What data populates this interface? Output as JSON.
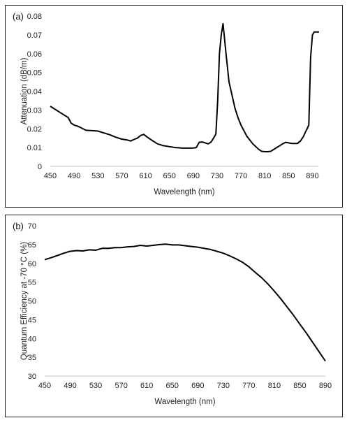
{
  "chart_data": [
    {
      "type": "line",
      "panel_label": "(a)",
      "title": "",
      "xlabel": "Wavelength (nm)",
      "ylabel": "Attenuation (dB/m)",
      "xlim": [
        450,
        900
      ],
      "ylim": [
        0,
        0.08
      ],
      "xticks": [
        450,
        490,
        530,
        570,
        610,
        650,
        690,
        730,
        770,
        810,
        850,
        890
      ],
      "yticks": [
        0,
        0.01,
        0.02,
        0.03,
        0.04,
        0.05,
        0.06,
        0.07,
        0.08
      ],
      "ytick_labels": [
        "0",
        "0.01",
        "0.02",
        "0.03",
        "0.04",
        "0.05",
        "0.06",
        "0.07",
        "0.08"
      ],
      "grid": false,
      "legend": "none",
      "series": [
        {
          "color": "#000000",
          "x": [
            450,
            470,
            480,
            485,
            490,
            495,
            500,
            510,
            520,
            530,
            540,
            550,
            560,
            570,
            580,
            585,
            588,
            592,
            596,
            602,
            607,
            613,
            620,
            630,
            640,
            650,
            660,
            670,
            675,
            680,
            683,
            686,
            690,
            695,
            700,
            705,
            710,
            715,
            720,
            724,
            728,
            731,
            734,
            737,
            740,
            745,
            750,
            755,
            760,
            765,
            770,
            775,
            780,
            790,
            800,
            805,
            810,
            815,
            820,
            830,
            840,
            845,
            850,
            855,
            860,
            865,
            870,
            875,
            878,
            881,
            884,
            887,
            890,
            893,
            896,
            899,
            901
          ],
          "y": [
            0.032,
            0.028,
            0.026,
            0.023,
            0.022,
            0.0215,
            0.0208,
            0.0192,
            0.019,
            0.0188,
            0.0178,
            0.0168,
            0.0155,
            0.0145,
            0.014,
            0.0135,
            0.014,
            0.0145,
            0.015,
            0.0165,
            0.017,
            0.0155,
            0.014,
            0.012,
            0.011,
            0.0105,
            0.01,
            0.0098,
            0.0097,
            0.0097,
            0.0097,
            0.0097,
            0.0098,
            0.01,
            0.0128,
            0.013,
            0.0125,
            0.012,
            0.013,
            0.015,
            0.0172,
            0.035,
            0.06,
            0.07,
            0.076,
            0.06,
            0.045,
            0.038,
            0.031,
            0.026,
            0.022,
            0.019,
            0.016,
            0.012,
            0.009,
            0.008,
            0.0078,
            0.0078,
            0.008,
            0.01,
            0.012,
            0.0128,
            0.0125,
            0.0122,
            0.0122,
            0.0122,
            0.0135,
            0.016,
            0.018,
            0.02,
            0.022,
            0.058,
            0.07,
            0.0715,
            0.0715,
            0.0715,
            0.0715
          ]
        }
      ]
    },
    {
      "type": "line",
      "panel_label": "(b)",
      "title": "",
      "xlabel": "Wavelength (nm)",
      "ylabel": "Quantum Efficiency at -70 °C (%)",
      "xlim": [
        450,
        890
      ],
      "ylim": [
        30,
        70
      ],
      "xticks": [
        450,
        490,
        530,
        570,
        610,
        650,
        690,
        730,
        770,
        810,
        850,
        890
      ],
      "yticks": [
        30,
        35,
        40,
        45,
        50,
        55,
        60,
        65,
        70
      ],
      "ytick_labels": [
        "30",
        "35",
        "40",
        "45",
        "50",
        "55",
        "60",
        "65",
        "70"
      ],
      "grid": false,
      "legend": "none",
      "series": [
        {
          "color": "#000000",
          "x": [
            450,
            460,
            470,
            480,
            490,
            500,
            510,
            520,
            530,
            540,
            550,
            560,
            570,
            580,
            590,
            600,
            610,
            620,
            630,
            640,
            650,
            660,
            670,
            680,
            690,
            700,
            710,
            720,
            730,
            740,
            750,
            760,
            770,
            780,
            790,
            800,
            810,
            820,
            830,
            840,
            850,
            860,
            870,
            880,
            890
          ],
          "y": [
            61.0,
            61.5,
            62.1,
            62.7,
            63.2,
            63.4,
            63.3,
            63.6,
            63.5,
            64.0,
            64.0,
            64.2,
            64.2,
            64.4,
            64.5,
            64.8,
            64.6,
            64.8,
            65.0,
            65.1,
            64.9,
            64.9,
            64.7,
            64.5,
            64.3,
            64.0,
            63.7,
            63.2,
            62.7,
            62.0,
            61.2,
            60.3,
            59.1,
            57.6,
            56.2,
            54.5,
            52.6,
            50.6,
            48.4,
            46.2,
            43.8,
            41.5,
            39.0,
            36.5,
            34.0
          ]
        }
      ]
    }
  ]
}
